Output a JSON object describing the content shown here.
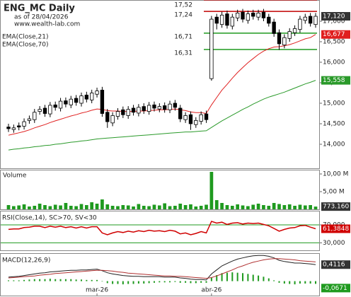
{
  "chart_data": [
    {
      "type": "candlestick",
      "title": "ENG_MC Daily",
      "subtitle": "as of 28/04/2026",
      "source": "www.wealth-lab.com",
      "categories": [
        null,
        null,
        null,
        null,
        null,
        null,
        null,
        null,
        null,
        null,
        null,
        null,
        null,
        null,
        null,
        null,
        null,
        "mar-26",
        null,
        null,
        null,
        null,
        null,
        null,
        null,
        null,
        null,
        null,
        null,
        null,
        null,
        null,
        null,
        null,
        null,
        null,
        null,
        null,
        null,
        "abr-26",
        null,
        null,
        null,
        null,
        null,
        null,
        null,
        null,
        null,
        null,
        null,
        null,
        null,
        null,
        null,
        null,
        null,
        null,
        null,
        null
      ],
      "open": [
        14.42,
        14.36,
        14.45,
        14.44,
        14.58,
        14.6,
        14.8,
        14.88,
        14.74,
        14.96,
        14.88,
        15.06,
        14.96,
        15.12,
        15.0,
        15.2,
        15.08,
        15.22,
        15.32,
        14.78,
        14.52,
        14.68,
        14.84,
        14.7,
        14.88,
        14.76,
        14.92,
        14.8,
        14.96,
        14.86,
        14.94,
        14.84,
        15.0,
        14.88,
        14.6,
        14.72,
        14.48,
        14.56,
        14.74,
        15.6,
        17.1,
        16.92,
        17.18,
        16.88,
        17.08,
        17.22,
        17.02,
        17.2,
        17.1,
        17.22,
        17.1,
        16.98,
        16.72,
        16.42,
        16.58,
        16.72,
        16.8,
        17.02,
        17.12,
        16.92
      ],
      "high": [
        14.5,
        14.48,
        14.53,
        14.63,
        14.7,
        14.86,
        14.93,
        14.96,
        15.03,
        15.04,
        15.13,
        15.14,
        15.18,
        15.2,
        15.26,
        15.28,
        15.33,
        15.38,
        15.4,
        14.86,
        14.78,
        14.88,
        14.92,
        14.93,
        14.96,
        14.98,
        15.0,
        15.03,
        15.04,
        15.0,
        15.02,
        15.06,
        15.08,
        14.96,
        14.78,
        14.8,
        14.66,
        14.8,
        14.82,
        17.13,
        17.18,
        17.23,
        17.26,
        17.18,
        17.28,
        17.3,
        17.26,
        17.28,
        17.28,
        17.3,
        17.18,
        17.06,
        16.8,
        16.68,
        16.83,
        16.9,
        17.13,
        17.18,
        17.2,
        17.2
      ],
      "low": [
        14.3,
        14.28,
        14.34,
        14.36,
        14.5,
        14.52,
        14.72,
        14.67,
        14.66,
        14.82,
        14.8,
        14.9,
        14.88,
        14.94,
        14.92,
        15.02,
        15.0,
        15.14,
        14.67,
        14.4,
        14.44,
        14.6,
        14.64,
        14.62,
        14.7,
        14.68,
        14.74,
        14.72,
        14.8,
        14.78,
        14.77,
        14.76,
        14.82,
        14.54,
        14.52,
        14.35,
        14.4,
        14.48,
        14.52,
        15.55,
        16.8,
        16.84,
        16.82,
        16.8,
        17.0,
        16.97,
        16.94,
        17.04,
        17.02,
        17.0,
        16.87,
        16.62,
        16.3,
        16.34,
        16.5,
        16.64,
        16.72,
        16.94,
        16.87,
        16.84
      ],
      "close": [
        14.38,
        14.4,
        14.42,
        14.55,
        14.62,
        14.78,
        14.85,
        14.75,
        14.95,
        14.9,
        15.05,
        14.98,
        15.1,
        15.02,
        15.18,
        15.1,
        15.25,
        15.3,
        14.75,
        14.55,
        14.7,
        14.8,
        14.72,
        14.85,
        14.78,
        14.9,
        14.82,
        14.95,
        14.88,
        14.92,
        14.85,
        14.98,
        14.9,
        14.62,
        14.7,
        14.5,
        14.58,
        14.72,
        14.6,
        17.05,
        16.95,
        17.15,
        16.9,
        17.1,
        17.2,
        17.05,
        17.18,
        17.12,
        17.2,
        17.08,
        16.95,
        16.7,
        16.45,
        16.6,
        16.75,
        16.82,
        17.05,
        17.1,
        16.95,
        17.12
      ],
      "last_close_label": "17,120",
      "series": [
        {
          "name": "EMA(Close,21)",
          "color": "#e02020",
          "last_value_label": "16,677",
          "values": [
            14.22,
            14.25,
            14.28,
            14.31,
            14.35,
            14.4,
            14.44,
            14.48,
            14.53,
            14.57,
            14.61,
            14.65,
            14.69,
            14.72,
            14.76,
            14.79,
            14.83,
            14.86,
            14.85,
            14.82,
            14.81,
            14.81,
            14.8,
            14.8,
            14.8,
            14.81,
            14.81,
            14.82,
            14.83,
            14.84,
            14.84,
            14.85,
            14.86,
            14.84,
            14.82,
            14.79,
            14.77,
            14.77,
            14.75,
            14.96,
            15.14,
            15.32,
            15.46,
            15.61,
            15.75,
            15.87,
            15.99,
            16.09,
            16.19,
            16.27,
            16.33,
            16.37,
            16.38,
            16.4,
            16.43,
            16.47,
            16.52,
            16.57,
            16.6,
            16.677
          ]
        },
        {
          "name": "EMA(Close,70)",
          "color": "#2a9a2a",
          "last_value_label": "15,558",
          "values": [
            13.86,
            13.88,
            13.89,
            13.91,
            13.92,
            13.94,
            13.95,
            13.97,
            13.98,
            14.0,
            14.01,
            14.03,
            14.05,
            14.06,
            14.08,
            14.09,
            14.11,
            14.13,
            14.14,
            14.15,
            14.16,
            14.17,
            14.18,
            14.19,
            14.2,
            14.21,
            14.22,
            14.23,
            14.24,
            14.25,
            14.26,
            14.27,
            14.28,
            14.29,
            14.3,
            14.3,
            14.31,
            14.32,
            14.33,
            14.41,
            14.49,
            14.57,
            14.64,
            14.71,
            14.78,
            14.85,
            14.91,
            14.98,
            15.04,
            15.1,
            15.15,
            15.19,
            15.23,
            15.27,
            15.32,
            15.37,
            15.42,
            15.47,
            15.51,
            15.558
          ]
        }
      ],
      "levels": [
        {
          "value": 17.52,
          "label": "17,52",
          "color": "#c00000"
        },
        {
          "value": 17.24,
          "label": "17,24",
          "color": "#c00000"
        },
        {
          "value": 16.71,
          "label": "16,71",
          "color": "#1f9a1f"
        },
        {
          "value": 16.31,
          "label": "16,31",
          "color": "#1f9a1f"
        }
      ],
      "ylim": [
        13.4,
        17.55
      ],
      "yticks": [
        {
          "value": 14,
          "label": "14,000"
        },
        {
          "value": 14.5,
          "label": "14,500"
        },
        {
          "value": 15,
          "label": "15,000"
        },
        {
          "value": 15.5,
          "label": "15,500"
        },
        {
          "value": 16,
          "label": "16,000"
        },
        {
          "value": 16.5,
          "label": "16,500"
        },
        {
          "value": 17,
          "label": "17,000"
        }
      ]
    },
    {
      "type": "bar",
      "title": "Volume",
      "color": "#1f9a1f",
      "last_value_label": "773.160",
      "values": [
        1.2,
        0.9,
        1.1,
        1.4,
        0.8,
        1.0,
        1.6,
        1.2,
        0.9,
        1.3,
        1.1,
        1.8,
        1.0,
        0.9,
        1.5,
        1.2,
        2.0,
        1.6,
        2.8,
        1.4,
        1.0,
        0.9,
        1.2,
        1.1,
        0.8,
        1.5,
        1.0,
        0.9,
        1.3,
        1.1,
        1.7,
        0.9,
        1.0,
        1.6,
        1.2,
        1.4,
        0.8,
        1.0,
        1.3,
        10.6,
        2.6,
        1.8,
        1.2,
        1.0,
        1.4,
        1.1,
        0.9,
        1.3,
        1.6,
        1.2,
        1.0,
        1.8,
        1.5,
        1.2,
        1.4,
        1.0,
        1.3,
        1.1,
        1.2,
        0.77316
      ],
      "ylim": [
        0,
        11.2
      ],
      "yticks": [
        {
          "value": 5,
          "label": "5,00 M"
        },
        {
          "value": 10,
          "label": "10,00 M"
        }
      ]
    },
    {
      "type": "line",
      "title": "RSI(Close,14), SC>70, SV<30",
      "color": "#d00000",
      "tick_color": "#1f9a1f",
      "last_value_label": "61,3848",
      "values": [
        60,
        61,
        61,
        64,
        65,
        67,
        67,
        64,
        67,
        65,
        67,
        64,
        66,
        63,
        66,
        63,
        66,
        66,
        52,
        48,
        52,
        55,
        53,
        56,
        54,
        57,
        55,
        58,
        56,
        57,
        55,
        58,
        56,
        50,
        52,
        48,
        51,
        55,
        52,
        78,
        74,
        76,
        71,
        74,
        75,
        72,
        74,
        73,
        74,
        71,
        68,
        62,
        56,
        60,
        63,
        64,
        68,
        69,
        65,
        61.3848
      ],
      "ylim": [
        13.3,
        100
      ],
      "yticks": [
        {
          "value": 30,
          "label": "30,000"
        },
        {
          "value": 70,
          "label": "70,000"
        }
      ]
    },
    {
      "type": "macd",
      "title": "MACD(12,26,9)",
      "series": [
        {
          "color": "#202020",
          "last_value_label": "0,4116",
          "values": [
            0.1,
            0.11,
            0.12,
            0.14,
            0.16,
            0.18,
            0.2,
            0.21,
            0.23,
            0.24,
            0.25,
            0.26,
            0.27,
            0.27,
            0.28,
            0.28,
            0.29,
            0.3,
            0.26,
            0.21,
            0.18,
            0.16,
            0.14,
            0.13,
            0.12,
            0.12,
            0.11,
            0.11,
            0.11,
            0.11,
            0.1,
            0.1,
            0.1,
            0.08,
            0.07,
            0.05,
            0.04,
            0.04,
            0.03,
            0.18,
            0.28,
            0.38,
            0.44,
            0.5,
            0.55,
            0.58,
            0.61,
            0.63,
            0.64,
            0.64,
            0.62,
            0.58,
            0.52,
            0.49,
            0.47,
            0.45,
            0.45,
            0.44,
            0.43,
            0.4116
          ]
        },
        {
          "color": "#b03030",
          "values": [
            0.08,
            0.09,
            0.1,
            0.11,
            0.12,
            0.13,
            0.15,
            0.16,
            0.17,
            0.19,
            0.2,
            0.21,
            0.22,
            0.23,
            0.24,
            0.25,
            0.26,
            0.27,
            0.27,
            0.26,
            0.25,
            0.23,
            0.22,
            0.2,
            0.19,
            0.18,
            0.17,
            0.16,
            0.15,
            0.14,
            0.13,
            0.13,
            0.12,
            0.12,
            0.11,
            0.1,
            0.09,
            0.08,
            0.07,
            0.09,
            0.13,
            0.18,
            0.23,
            0.28,
            0.34,
            0.38,
            0.43,
            0.47,
            0.5,
            0.53,
            0.55,
            0.56,
            0.56,
            0.55,
            0.54,
            0.53,
            0.51,
            0.5,
            0.49,
            0.4787
          ]
        }
      ],
      "histogram": {
        "color": "#1f9a1f",
        "last_value_label": "-0,0671",
        "values": [
          0.02,
          0.02,
          0.02,
          0.03,
          0.04,
          0.05,
          0.05,
          0.05,
          0.06,
          0.05,
          0.05,
          0.05,
          0.05,
          0.04,
          0.04,
          0.03,
          0.03,
          0.03,
          -0.01,
          -0.05,
          -0.07,
          -0.07,
          -0.08,
          -0.07,
          -0.07,
          -0.06,
          -0.06,
          -0.05,
          -0.04,
          -0.03,
          -0.03,
          -0.03,
          -0.02,
          -0.04,
          -0.04,
          -0.05,
          -0.05,
          -0.04,
          -0.04,
          0.09,
          0.15,
          0.2,
          0.21,
          0.22,
          0.21,
          0.2,
          0.18,
          0.16,
          0.14,
          0.11,
          0.07,
          0.02,
          -0.04,
          -0.06,
          -0.07,
          -0.08,
          -0.06,
          -0.06,
          -0.06,
          -0.0671
        ]
      },
      "ylim": [
        -0.36,
        0.68
      ]
    }
  ]
}
